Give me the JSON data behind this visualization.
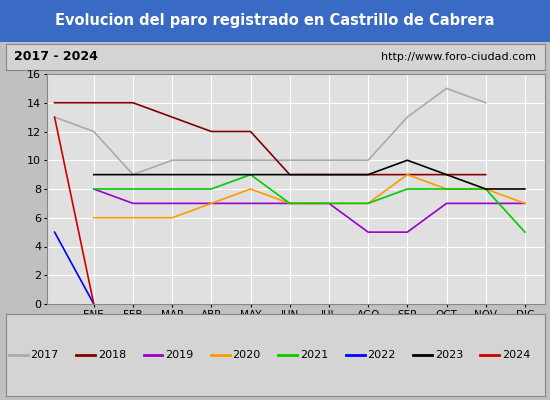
{
  "title": "Evolucion del paro registrado en Castrillo de Cabrera",
  "subtitle_left": "2017 - 2024",
  "subtitle_right": "http://www.foro-ciudad.com",
  "months": [
    "",
    "ENE",
    "FEB",
    "MAR",
    "ABR",
    "MAY",
    "JUN",
    "JUL",
    "AGO",
    "SEP",
    "OCT",
    "NOV",
    "DIC"
  ],
  "xtick_positions": [
    1,
    2,
    3,
    4,
    5,
    6,
    7,
    8,
    9,
    10,
    11,
    12
  ],
  "xtick_labels": [
    "ENE",
    "FEB",
    "MAR",
    "ABR",
    "MAY",
    "JUN",
    "JUL",
    "AGO",
    "SEP",
    "OCT",
    "NOV",
    "DIC"
  ],
  "series": {
    "2017": {
      "color": "#aaaaaa",
      "data_x": [
        0,
        1,
        2,
        3,
        4,
        5,
        6,
        7,
        8,
        9,
        10,
        11,
        12
      ],
      "data_y": [
        13,
        12,
        9,
        10,
        10,
        10,
        10,
        10,
        10,
        13,
        15,
        14,
        null
      ]
    },
    "2018": {
      "color": "#800000",
      "data_x": [
        0,
        1,
        2,
        3,
        4,
        5,
        6,
        7,
        8,
        9,
        10,
        11,
        12
      ],
      "data_y": [
        14,
        14,
        14,
        13,
        12,
        12,
        9,
        9,
        9,
        9,
        9,
        9,
        null
      ]
    },
    "2019": {
      "color": "#9900cc",
      "data_x": [
        1,
        2,
        3,
        4,
        5,
        6,
        7,
        8,
        9,
        10,
        11,
        12
      ],
      "data_y": [
        8,
        7,
        7,
        7,
        7,
        7,
        7,
        5,
        5,
        7,
        7,
        7
      ]
    },
    "2020": {
      "color": "#ff9900",
      "data_x": [
        1,
        2,
        3,
        4,
        5,
        6,
        7,
        8,
        9,
        10,
        11,
        12
      ],
      "data_y": [
        6,
        6,
        6,
        7,
        8,
        7,
        7,
        7,
        9,
        8,
        8,
        7
      ]
    },
    "2021": {
      "color": "#00cc00",
      "data_x": [
        1,
        2,
        3,
        4,
        5,
        6,
        7,
        8,
        9,
        10,
        11,
        12
      ],
      "data_y": [
        8,
        8,
        8,
        8,
        9,
        7,
        7,
        7,
        8,
        8,
        8,
        5
      ]
    },
    "2022": {
      "color": "#0000ff",
      "data_x": [
        0,
        1
      ],
      "data_y": [
        5,
        0
      ]
    },
    "2023": {
      "color": "#000000",
      "data_x": [
        1,
        2,
        3,
        4,
        5,
        6,
        7,
        8,
        9,
        10,
        11,
        12
      ],
      "data_y": [
        9,
        9,
        9,
        9,
        9,
        9,
        9,
        9,
        10,
        9,
        8,
        8
      ]
    },
    "2024": {
      "color": "#cc0000",
      "data_x": [
        0,
        1
      ],
      "data_y": [
        13,
        0
      ]
    }
  },
  "xlim": [
    -0.2,
    12.5
  ],
  "ylim": [
    0,
    16
  ],
  "yticks": [
    0,
    2,
    4,
    6,
    8,
    10,
    12,
    14,
    16
  ],
  "title_bg_color": "#3a6bc4",
  "title_text_color": "#ffffff",
  "subtitle_bg_color": "#d4d4d4",
  "plot_bg_color": "#e0e0e0",
  "grid_color": "#ffffff",
  "legend_bg_color": "#d4d4d4"
}
